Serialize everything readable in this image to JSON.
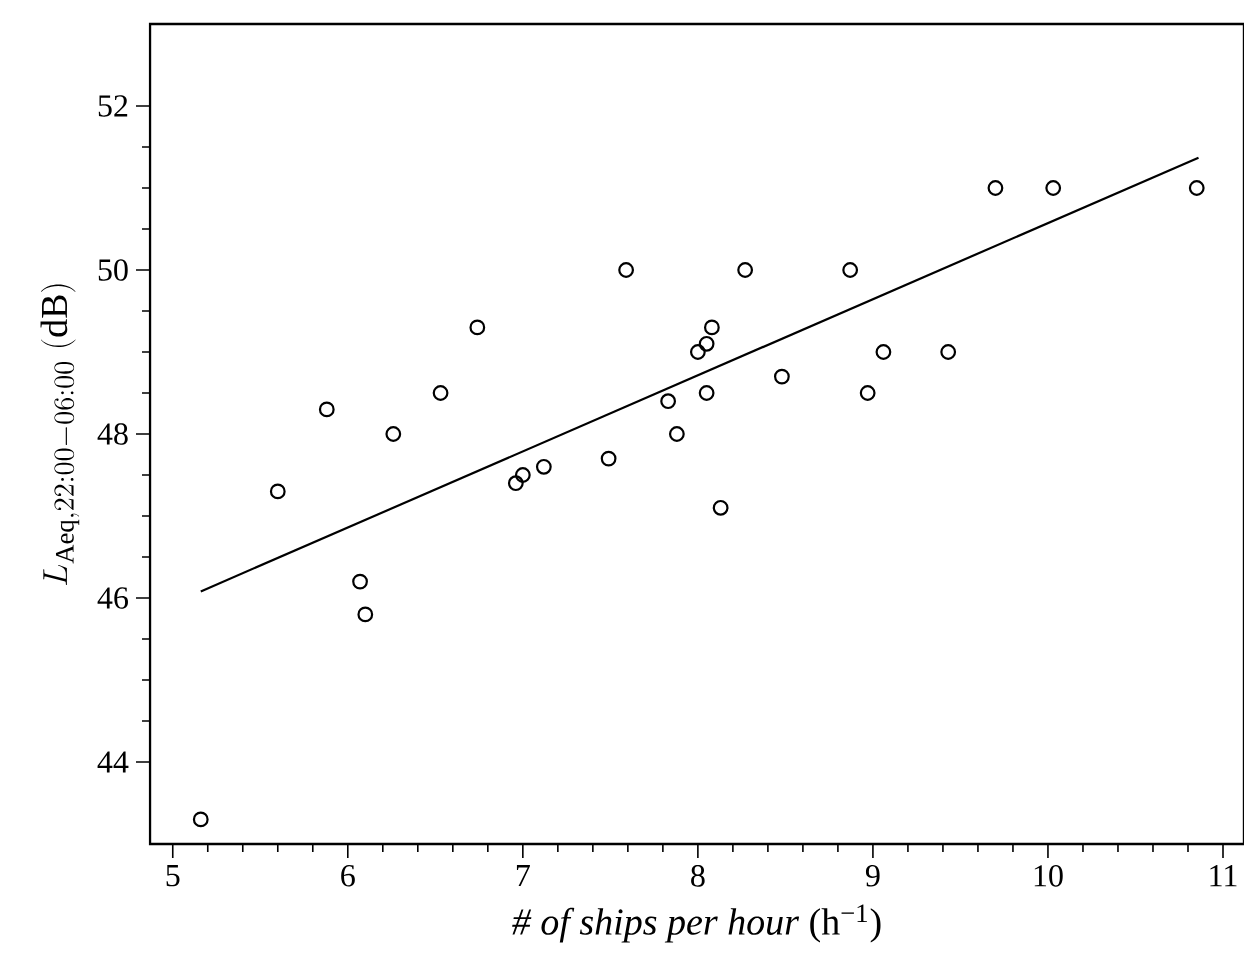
{
  "chart_data": {
    "type": "scatter",
    "xlabel": "*# of ships per hour* (h$^{−1}$)",
    "ylabel": "L_{\\mathrm{Aeq},22{:}00-06{:}00}\\ (\\mathrm{dB})",
    "xlim": [
      4.87,
      11.12
    ],
    "ylim": [
      43,
      53
    ],
    "xticks": [
      5,
      6,
      7,
      8,
      9,
      10,
      11
    ],
    "yticks": [
      44,
      46,
      48,
      50,
      52
    ],
    "grid": false,
    "marker": "circle",
    "series": [
      {
        "color": "#000000",
        "x": [
          5.16,
          5.6,
          5.88,
          6.07,
          6.1,
          6.26,
          6.53,
          6.74,
          6.96,
          7.0,
          7.12,
          7.49,
          7.59,
          7.83,
          7.88,
          8.0,
          8.05,
          8.08,
          8.05,
          8.13,
          8.27,
          8.48,
          8.87,
          8.97,
          9.06,
          9.43,
          9.7,
          10.03,
          10.85
        ],
        "values": [
          43.3,
          47.3,
          48.3,
          46.2,
          45.8,
          48.0,
          48.5,
          49.3,
          47.4,
          47.5,
          47.6,
          47.7,
          50.0,
          48.4,
          48.0,
          49.0,
          49.1,
          49.3,
          48.5,
          47.1,
          50.0,
          48.7,
          50.0,
          48.5,
          49.0,
          49.0,
          51.0,
          51.0,
          51.0
        ]
      },
      {
        "type": "line",
        "color": "#000000",
        "marker": "none",
        "line_style": "solid",
        "x": [
          5.16,
          10.86
        ],
        "values": [
          46.08,
          51.37
        ]
      }
    ]
  }
}
